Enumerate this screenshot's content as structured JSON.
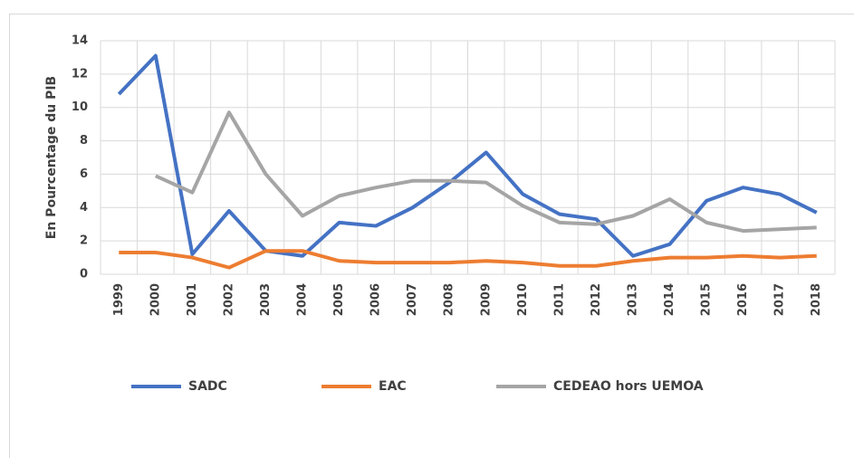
{
  "chart_data": {
    "type": "line",
    "y_label": "En Pourcentage du PIB",
    "categories": [
      "1999",
      "2000",
      "2001",
      "2002",
      "2003",
      "2004",
      "2005",
      "2006",
      "2007",
      "2008",
      "2009",
      "2010",
      "2011",
      "2012",
      "2013",
      "2014",
      "2015",
      "2016",
      "2017",
      "2018"
    ],
    "series": [
      {
        "name": "SADC",
        "color": "#4472c4",
        "values": [
          10.8,
          13.1,
          1.2,
          3.8,
          1.4,
          1.1,
          3.1,
          2.9,
          4.0,
          5.5,
          7.3,
          4.8,
          3.6,
          3.3,
          1.1,
          1.8,
          4.4,
          5.2,
          4.8,
          3.7
        ]
      },
      {
        "name": "EAC",
        "color": "#ed7d31",
        "values": [
          1.3,
          1.3,
          1.0,
          0.4,
          1.4,
          1.4,
          0.8,
          0.7,
          0.7,
          0.7,
          0.8,
          0.7,
          0.5,
          0.5,
          0.8,
          1.0,
          1.0,
          1.1,
          1.0,
          1.1
        ]
      },
      {
        "name": "CEDEAO hors UEMOA",
        "color": "#a5a5a5",
        "values": [
          null,
          5.9,
          4.9,
          9.7,
          6.0,
          3.5,
          4.7,
          5.2,
          5.6,
          5.6,
          5.5,
          4.1,
          3.1,
          3.0,
          3.5,
          4.5,
          3.1,
          2.6,
          2.7,
          2.8
        ]
      }
    ],
    "ylim": [
      0,
      14
    ],
    "yticks": [
      0,
      2,
      4,
      6,
      8,
      10,
      12,
      14
    ],
    "grid": true,
    "legend": "bottom"
  }
}
